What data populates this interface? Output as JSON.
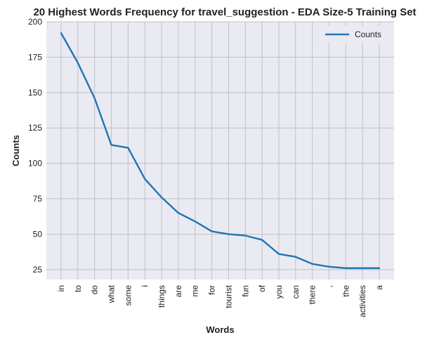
{
  "chart_data": {
    "type": "line",
    "title": "20 Highest Words Frequency for travel_suggestion - EDA Size-5 Training Set",
    "xlabel": "Words",
    "ylabel": "Counts",
    "categories": [
      "in",
      "to",
      "do",
      "what",
      "some",
      "i",
      "things",
      "are",
      "me",
      "for",
      "tourist",
      "fun",
      "of",
      "you",
      "can",
      "there",
      ",",
      "the",
      "activities",
      "a"
    ],
    "series": [
      {
        "name": "Counts",
        "color": "#1f77b4",
        "values": [
          192,
          171,
          146,
          113,
          111,
          89,
          76,
          65,
          59,
          52,
          50,
          49,
          46,
          36,
          34,
          29,
          27,
          26,
          26,
          26
        ]
      }
    ],
    "ylim": [
      18,
      200
    ],
    "yticks": [
      25,
      50,
      75,
      100,
      125,
      150,
      175,
      200
    ],
    "grid": true,
    "legend": "top-right",
    "plot_background": "#eaeaf2",
    "grid_color": "#c0c0c8"
  }
}
